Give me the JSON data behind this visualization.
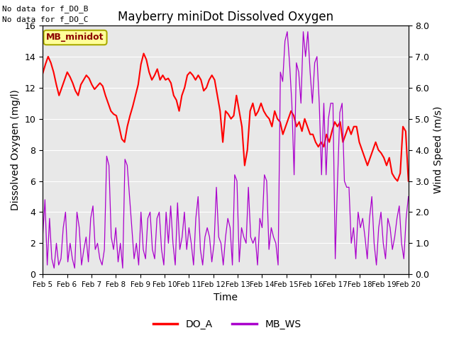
{
  "title": "Mayberry miniDot Dissolved Oxygen",
  "ylabel_left": "Dissolved Oxygen (mg/l)",
  "ylabel_right": "Wind Speed (m/s)",
  "xlabel": "Time",
  "ylim_left": [
    0,
    16
  ],
  "ylim_right": [
    0.0,
    8.0
  ],
  "yticks_left": [
    0,
    2,
    4,
    6,
    8,
    10,
    12,
    14,
    16
  ],
  "yticks_right": [
    0.0,
    1.0,
    2.0,
    3.0,
    4.0,
    5.0,
    6.0,
    7.0,
    8.0
  ],
  "ytick_labels_right": [
    "0.0",
    "1.0",
    "2.0",
    "3.0",
    "4.0",
    "5.0",
    "6.0",
    "7.0",
    "8.0"
  ],
  "no_data_text": [
    "No data for f_DO_B",
    "No data for f_DO_C"
  ],
  "legend_box_label": "MB_minidot",
  "legend_entries": [
    "DO_A",
    "MB_WS"
  ],
  "do_color": "#ff0000",
  "ws_color": "#aa00cc",
  "bg_color": "#e8e8e8",
  "fig_bg_color": "#ffffff",
  "xtick_labels": [
    "Feb 5",
    "Feb 6",
    "Feb 7",
    "Feb 8",
    "Feb 9",
    "Feb 10",
    "Feb 11",
    "Feb 12",
    "Feb 13",
    "Feb 14",
    "Feb 15",
    "Feb 16",
    "Feb 17",
    "Feb 18",
    "Feb 19",
    "Feb 20"
  ],
  "do_data": [
    12.9,
    13.5,
    14.0,
    13.6,
    13.0,
    12.2,
    11.5,
    12.0,
    12.5,
    13.0,
    12.7,
    12.3,
    11.8,
    11.5,
    12.2,
    12.5,
    12.8,
    12.6,
    12.2,
    11.9,
    12.1,
    12.3,
    12.1,
    11.5,
    11.0,
    10.5,
    10.3,
    10.2,
    9.5,
    8.7,
    8.5,
    9.5,
    10.2,
    10.8,
    11.5,
    12.2,
    13.5,
    14.2,
    13.8,
    13.0,
    12.5,
    12.8,
    13.2,
    12.5,
    12.8,
    12.5,
    12.6,
    12.3,
    11.5,
    11.2,
    10.5,
    11.5,
    12.0,
    12.8,
    13.0,
    12.8,
    12.5,
    12.8,
    12.5,
    11.8,
    12.0,
    12.5,
    12.8,
    12.5,
    11.5,
    10.5,
    8.5,
    10.5,
    10.3,
    10.0,
    10.2,
    11.5,
    10.5,
    9.5,
    7.0,
    8.0,
    10.5,
    11.0,
    10.2,
    10.5,
    11.0,
    10.5,
    10.2,
    10.0,
    9.5,
    10.5,
    10.0,
    9.8,
    9.0,
    9.5,
    10.0,
    10.5,
    10.2,
    9.5,
    9.8,
    9.2,
    10.0,
    9.5,
    9.0,
    9.0,
    8.5,
    8.2,
    8.5,
    8.2,
    9.0,
    8.5,
    9.2,
    9.8,
    9.5,
    9.8,
    8.5,
    9.0,
    9.5,
    9.0,
    9.5,
    9.5,
    8.5,
    8.0,
    7.5,
    7.0,
    7.5,
    8.0,
    8.5,
    8.0,
    7.8,
    7.5,
    7.0,
    7.5,
    6.5,
    6.2,
    6.0,
    6.5,
    9.5,
    9.2,
    6.0
  ],
  "ws_data": [
    1.2,
    2.4,
    0.3,
    1.8,
    0.5,
    0.2,
    1.0,
    0.3,
    0.5,
    1.5,
    2.0,
    0.4,
    1.0,
    0.5,
    0.2,
    2.0,
    1.5,
    0.3,
    0.8,
    1.2,
    0.4,
    1.8,
    2.2,
    0.8,
    1.0,
    0.5,
    0.3,
    0.8,
    3.8,
    3.5,
    1.2,
    0.8,
    1.5,
    0.4,
    1.0,
    0.2,
    3.7,
    3.5,
    2.5,
    1.5,
    0.5,
    1.0,
    0.3,
    2.0,
    0.8,
    0.5,
    1.8,
    2.0,
    0.8,
    0.5,
    1.8,
    2.0,
    0.8,
    0.3,
    2.0,
    1.0,
    2.2,
    1.0,
    0.3,
    2.3,
    0.8,
    1.2,
    2.0,
    0.8,
    1.5,
    1.0,
    0.3,
    1.8,
    2.5,
    0.8,
    0.3,
    1.2,
    1.5,
    1.2,
    0.4,
    1.0,
    2.8,
    1.2,
    1.0,
    0.3,
    1.2,
    1.8,
    1.5,
    0.3,
    3.2,
    3.0,
    0.4,
    1.5,
    1.2,
    1.0,
    2.8,
    1.2,
    1.0,
    1.2,
    0.3,
    1.8,
    1.5,
    3.2,
    3.0,
    0.8,
    1.5,
    1.2,
    1.0,
    0.3,
    6.5,
    6.2,
    7.5,
    7.8,
    6.8,
    5.5,
    3.2,
    6.8,
    6.5,
    5.5,
    7.8,
    7.0,
    7.8,
    6.5,
    5.5,
    6.8,
    7.0,
    5.5,
    3.2,
    5.5,
    3.2,
    5.0,
    5.5,
    5.5,
    0.5,
    3.0,
    5.2,
    5.5,
    3.0,
    2.8,
    2.8,
    1.0,
    1.5,
    0.5,
    2.0,
    1.5,
    1.8,
    1.2,
    0.5,
    1.8,
    2.5,
    1.0,
    0.3,
    1.5,
    2.0,
    1.0,
    0.5,
    1.8,
    1.5,
    0.8,
    1.2,
    1.8,
    2.2,
    1.0,
    0.5,
    1.8,
    2.5
  ]
}
